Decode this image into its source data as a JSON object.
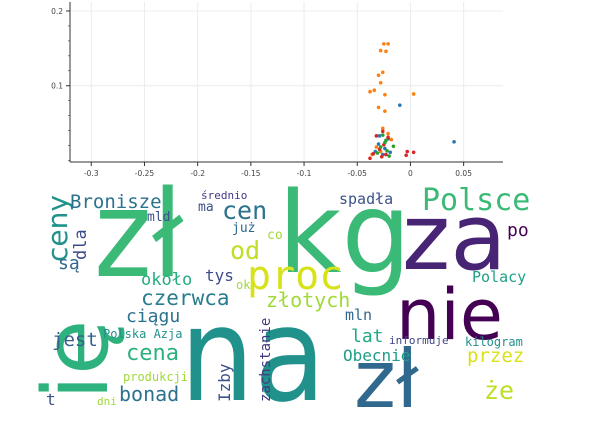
{
  "chart_data": {
    "type": "scatter",
    "x_ticks": [
      "-0.3",
      "-0.25",
      "-0.2",
      "-0.15",
      "-0.1",
      "-0.05",
      "0",
      "0.05"
    ],
    "y_ticks": [
      "0.1",
      "0.2"
    ],
    "xlim": [
      -0.32,
      0.087
    ],
    "ylim": [
      -0.002,
      0.212
    ],
    "grid": true,
    "colors": {
      "blue": "#2a77b4",
      "orange": "#ff7f0e",
      "red": "#d62728",
      "green": "#2ca02c"
    },
    "series": [
      {
        "color": "orange",
        "points": [
          [
            -0.021,
            0.156
          ],
          [
            -0.025,
            0.156
          ],
          [
            -0.028,
            0.147
          ],
          [
            -0.023,
            0.146
          ],
          [
            -0.026,
            0.118
          ],
          [
            -0.03,
            0.114
          ],
          [
            -0.028,
            0.104
          ],
          [
            -0.034,
            0.094
          ],
          [
            -0.038,
            0.092
          ],
          [
            -0.024,
            0.088
          ],
          [
            0.003,
            0.089
          ],
          [
            -0.03,
            0.071
          ],
          [
            -0.024,
            0.066
          ],
          [
            -0.026,
            0.043
          ],
          [
            -0.021,
            0.036
          ],
          [
            -0.018,
            0.028
          ],
          [
            -0.032,
            0.018
          ],
          [
            -0.028,
            0.012
          ],
          [
            -0.036,
            0.008
          ]
        ]
      },
      {
        "color": "blue",
        "points": [
          [
            -0.01,
            0.074
          ],
          [
            0.041,
            0.025
          ],
          [
            -0.021,
            0.029
          ],
          [
            -0.03,
            0.022
          ],
          [
            -0.024,
            0.016
          ],
          [
            -0.019,
            0.011
          ],
          [
            -0.026,
            0.008
          ],
          [
            -0.033,
            0.012
          ],
          [
            -0.029,
            0.033
          ]
        ]
      },
      {
        "color": "red",
        "points": [
          [
            -0.026,
            0.039
          ],
          [
            -0.032,
            0.033
          ],
          [
            -0.021,
            0.031
          ],
          [
            -0.025,
            0.021
          ],
          [
            -0.029,
            0.015
          ],
          [
            -0.035,
            0.009
          ],
          [
            -0.023,
            0.008
          ],
          [
            -0.003,
            0.012
          ],
          [
            -0.004,
            0.007
          ],
          [
            0.003,
            0.011
          ],
          [
            -0.027,
            0.005
          ],
          [
            -0.038,
            0.003
          ]
        ]
      },
      {
        "color": "green",
        "points": [
          [
            -0.026,
            0.034
          ],
          [
            -0.024,
            0.024
          ],
          [
            -0.028,
            0.018
          ],
          [
            -0.022,
            0.013
          ],
          [
            -0.031,
            0.01
          ],
          [
            -0.02,
            0.006
          ],
          [
            -0.023,
            0.027
          ],
          [
            -0.016,
            0.019
          ]
        ]
      }
    ]
  },
  "wordcloud": {
    "words": [
      {
        "text": "zł",
        "color": "#3aba76"
      },
      {
        "text": "kg",
        "color": "#3aba76"
      },
      {
        "text": "za",
        "color": "#482475"
      },
      {
        "text": "nie",
        "color": "#440154"
      },
      {
        "text": "na",
        "color": "#21918c"
      },
      {
        "text": "zł",
        "color": "#31688e"
      },
      {
        "text": "ię",
        "color": "#2db27d"
      },
      {
        "text": "ceny",
        "color": "#21918c"
      },
      {
        "text": "Bronisze",
        "color": "#2c728e"
      },
      {
        "text": "mld",
        "color": "#3b528b"
      },
      {
        "text": "średnio",
        "color": "#443983"
      },
      {
        "text": "ma",
        "color": "#3b528b"
      },
      {
        "text": "cen",
        "color": "#2c728e"
      },
      {
        "text": "spadła",
        "color": "#3b528b"
      },
      {
        "text": "Polsce",
        "color": "#3aba76"
      },
      {
        "text": "po",
        "color": "#440154"
      },
      {
        "text": "dla",
        "color": "#3e4a89"
      },
      {
        "text": "są",
        "color": "#31688e"
      },
      {
        "text": "już",
        "color": "#31688e"
      },
      {
        "text": "co",
        "color": "#a0da39"
      },
      {
        "text": "od",
        "color": "#bddf26"
      },
      {
        "text": "proc",
        "color": "#d8e219"
      },
      {
        "text": "około",
        "color": "#25ab82"
      },
      {
        "text": "tys",
        "color": "#3e4a89"
      },
      {
        "text": "ok",
        "color": "#a0da39"
      },
      {
        "text": "czerwca",
        "color": "#287d8e"
      },
      {
        "text": "złotych",
        "color": "#a0da39"
      },
      {
        "text": "Polacy",
        "color": "#1fa188"
      },
      {
        "text": "ciągu",
        "color": "#2c728e"
      },
      {
        "text": "mln",
        "color": "#31688e"
      },
      {
        "text": "Polska Azja",
        "color": "#21918c"
      },
      {
        "text": "jest",
        "color": "#355f8d"
      },
      {
        "text": "lat",
        "color": "#22a785"
      },
      {
        "text": "informuje",
        "color": "#404688"
      },
      {
        "text": "kilogram",
        "color": "#21918c"
      },
      {
        "text": "cena",
        "color": "#2db27d"
      },
      {
        "text": "zachstanie",
        "color": "#453781"
      },
      {
        "text": "Obecnie",
        "color": "#1f9e89"
      },
      {
        "text": "przez",
        "color": "#d8e219"
      },
      {
        "text": "produkcji",
        "color": "#a0da39"
      },
      {
        "text": "bonad",
        "color": "#2c728e"
      },
      {
        "text": "Izby",
        "color": "#3b528b"
      },
      {
        "text": "że",
        "color": "#bddf26"
      },
      {
        "text": "dni",
        "color": "#a0da39"
      },
      {
        "text": "t",
        "color": "#3b528b"
      }
    ]
  }
}
